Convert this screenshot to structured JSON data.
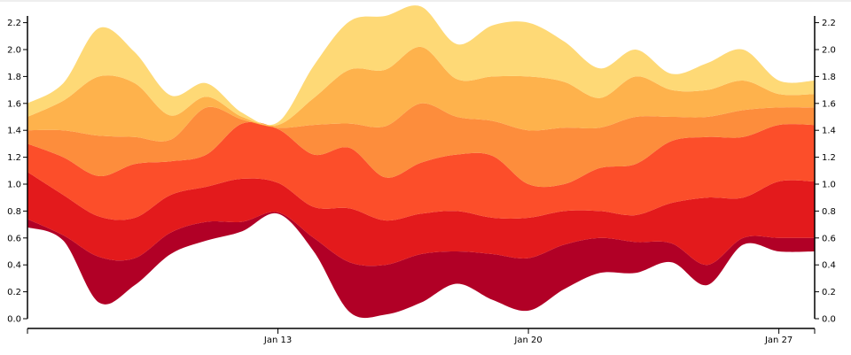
{
  "chart_data": {
    "type": "area",
    "subtype": "stacked-stream",
    "x_type": "date",
    "x_domain": [
      "Jan 06",
      "Jan 28"
    ],
    "x": [
      "Jan 06",
      "Jan 07",
      "Jan 08",
      "Jan 09",
      "Jan 10",
      "Jan 11",
      "Jan 12",
      "Jan 13",
      "Jan 14",
      "Jan 15",
      "Jan 16",
      "Jan 17",
      "Jan 18",
      "Jan 19",
      "Jan 20",
      "Jan 21",
      "Jan 22",
      "Jan 23",
      "Jan 24",
      "Jan 25",
      "Jan 26",
      "Jan 27",
      "Jan 28"
    ],
    "x_ticks": [
      "Jan 13",
      "Jan 20",
      "Jan 27"
    ],
    "y_ticks": [
      "0.0",
      "0.2",
      "0.4",
      "0.6",
      "0.8",
      "1.0",
      "1.2",
      "1.4",
      "1.6",
      "1.8",
      "2.0",
      "2.2"
    ],
    "ylim": [
      0,
      2.25
    ],
    "grid": false,
    "legend": "none",
    "baseline": [
      0.68,
      0.58,
      0.12,
      0.25,
      0.48,
      0.58,
      0.65,
      0.78,
      0.5,
      0.05,
      0.03,
      0.12,
      0.26,
      0.14,
      0.06,
      0.22,
      0.34,
      0.34,
      0.42,
      0.25,
      0.55,
      0.5,
      0.5
    ],
    "series": [
      {
        "color": "#b10026",
        "values": [
          0.06,
          0.04,
          0.34,
          0.2,
          0.16,
          0.14,
          0.07,
          0.01,
          0.1,
          0.37,
          0.37,
          0.36,
          0.24,
          0.34,
          0.39,
          0.33,
          0.26,
          0.23,
          0.14,
          0.15,
          0.05,
          0.1,
          0.1
        ]
      },
      {
        "color": "#e31a1c",
        "values": [
          0.35,
          0.3,
          0.3,
          0.3,
          0.28,
          0.26,
          0.32,
          0.22,
          0.23,
          0.4,
          0.33,
          0.3,
          0.3,
          0.27,
          0.3,
          0.25,
          0.2,
          0.2,
          0.3,
          0.5,
          0.3,
          0.42,
          0.42
        ]
      },
      {
        "color": "#fc4e2a",
        "values": [
          0.21,
          0.28,
          0.3,
          0.4,
          0.25,
          0.24,
          0.41,
          0.4,
          0.39,
          0.45,
          0.32,
          0.38,
          0.42,
          0.46,
          0.25,
          0.2,
          0.32,
          0.38,
          0.46,
          0.45,
          0.45,
          0.42,
          0.42
        ]
      },
      {
        "color": "#fd8d3c",
        "values": [
          0.1,
          0.2,
          0.3,
          0.2,
          0.16,
          0.35,
          0.03,
          0.01,
          0.22,
          0.18,
          0.38,
          0.44,
          0.28,
          0.26,
          0.4,
          0.42,
          0.3,
          0.35,
          0.18,
          0.15,
          0.2,
          0.13,
          0.13
        ]
      },
      {
        "color": "#feb24c",
        "values": [
          0.1,
          0.22,
          0.44,
          0.4,
          0.18,
          0.08,
          0.02,
          0.02,
          0.2,
          0.4,
          0.42,
          0.42,
          0.28,
          0.33,
          0.4,
          0.34,
          0.22,
          0.3,
          0.2,
          0.2,
          0.22,
          0.1,
          0.1
        ]
      },
      {
        "color": "#fed976",
        "values": [
          0.1,
          0.13,
          0.36,
          0.23,
          0.15,
          0.1,
          0.03,
          0.02,
          0.24,
          0.36,
          0.4,
          0.3,
          0.26,
          0.38,
          0.4,
          0.3,
          0.22,
          0.2,
          0.12,
          0.2,
          0.23,
          0.1,
          0.1
        ]
      }
    ]
  }
}
